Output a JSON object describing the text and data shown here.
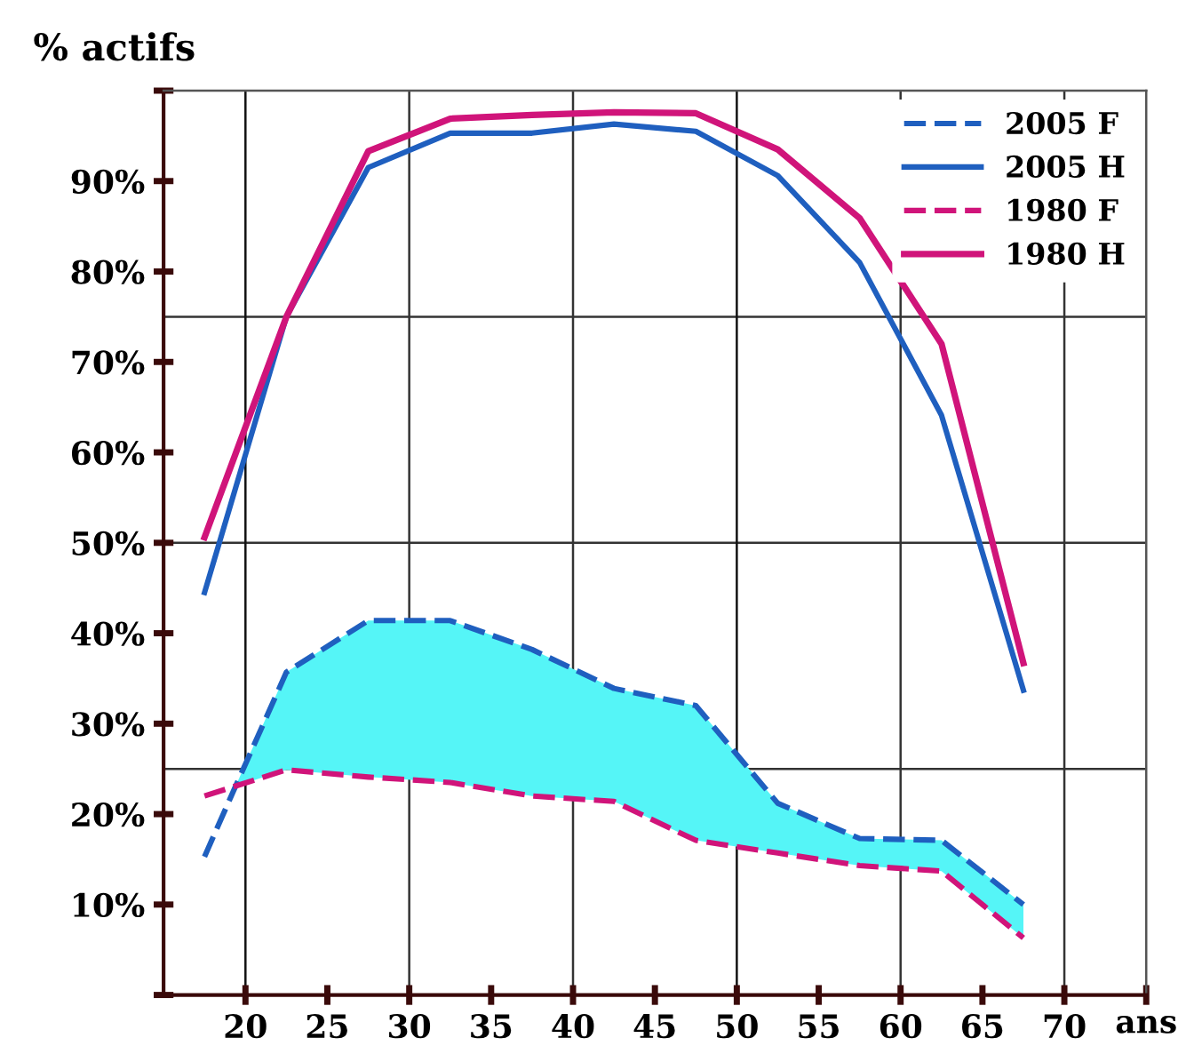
{
  "chart_data": {
    "type": "line",
    "ylabel": "% actifs",
    "xlabel": "ans",
    "x": [
      17.5,
      22.5,
      27.5,
      32.5,
      37.5,
      42.5,
      47.5,
      52.5,
      57.5,
      62.5,
      67.5
    ],
    "series": [
      {
        "name": "2005 F",
        "color": "#1f5fbf",
        "line_style": "dashed",
        "x": [
          17.5,
          19.4,
          22.5,
          27.5,
          32.5,
          37.5,
          42.5,
          47.5,
          52.5,
          57.5,
          62.5,
          67.5
        ],
        "values": [
          15.3,
          23.1,
          35.7,
          41.4,
          41.4,
          38.2,
          33.9,
          32,
          21.2,
          17.3,
          17.1,
          10
        ],
        "lower": [
          null,
          23.1,
          24.9,
          24.1,
          23.5,
          22,
          21.4,
          17.1,
          15.7,
          14.3,
          13.7,
          6.3
        ],
        "upper": [
          null,
          23.1,
          35.7,
          41.4,
          41.4,
          38.2,
          33.9,
          32,
          21.2,
          17.3,
          17.1,
          10
        ]
      },
      {
        "name": "2005 H",
        "color": "#1f5fbf",
        "line_style": "solid",
        "values": [
          44.5,
          75,
          91.5,
          95.3,
          95.3,
          96.3,
          95.5,
          90.6,
          81,
          64.1,
          33.7
        ]
      },
      {
        "name": "1980 F",
        "color": "#d0147a",
        "line_style": "dashed",
        "values": [
          22,
          24.9,
          24.1,
          23.5,
          22,
          21.4,
          17.1,
          15.7,
          14.3,
          13.7,
          6.3
        ]
      },
      {
        "name": "1980 H",
        "color": "#d0147a",
        "line_style": "solid",
        "values": [
          50.6,
          75,
          93.3,
          96.9,
          97.3,
          97.6,
          97.5,
          93.5,
          85.9,
          72,
          36.7
        ]
      }
    ],
    "xlim": [
      15,
      75
    ],
    "ylim": [
      0,
      100
    ],
    "xticks": [
      20,
      25,
      30,
      35,
      40,
      45,
      50,
      55,
      60,
      65,
      70,
      {
        "value": 75,
        "label": null
      }
    ],
    "yticks": [
      {
        "value": 0,
        "label": null
      },
      {
        "value": 10,
        "label": "10%"
      },
      {
        "value": 20,
        "label": "20%"
      },
      {
        "value": 30,
        "label": "30%"
      },
      {
        "value": 40,
        "label": "40%"
      },
      {
        "value": 50,
        "label": "50%"
      },
      {
        "value": 60,
        "label": "60%"
      },
      {
        "value": 70,
        "label": "70%"
      },
      {
        "value": 80,
        "label": "80%"
      },
      {
        "value": 90,
        "label": "90%"
      },
      {
        "value": 100,
        "label": null
      }
    ],
    "ref_lines": [
      {
        "axis": "y",
        "value": 25,
        "color": "#333333"
      },
      {
        "axis": "y",
        "value": 50,
        "color": "#333333"
      },
      {
        "axis": "y",
        "value": 75,
        "color": "#333333"
      },
      {
        "axis": "x",
        "value": 20,
        "color": "#111111"
      },
      {
        "axis": "x",
        "value": 30,
        "color": "#333333"
      },
      {
        "axis": "x",
        "value": 40,
        "color": "#333333"
      },
      {
        "axis": "x",
        "value": 50,
        "color": "#111111"
      },
      {
        "axis": "x",
        "value": 60,
        "color": "#333333"
      },
      {
        "axis": "x",
        "value": 70,
        "color": "#333333"
      }
    ],
    "grid": false,
    "legend": "top right",
    "marker": "none"
  }
}
